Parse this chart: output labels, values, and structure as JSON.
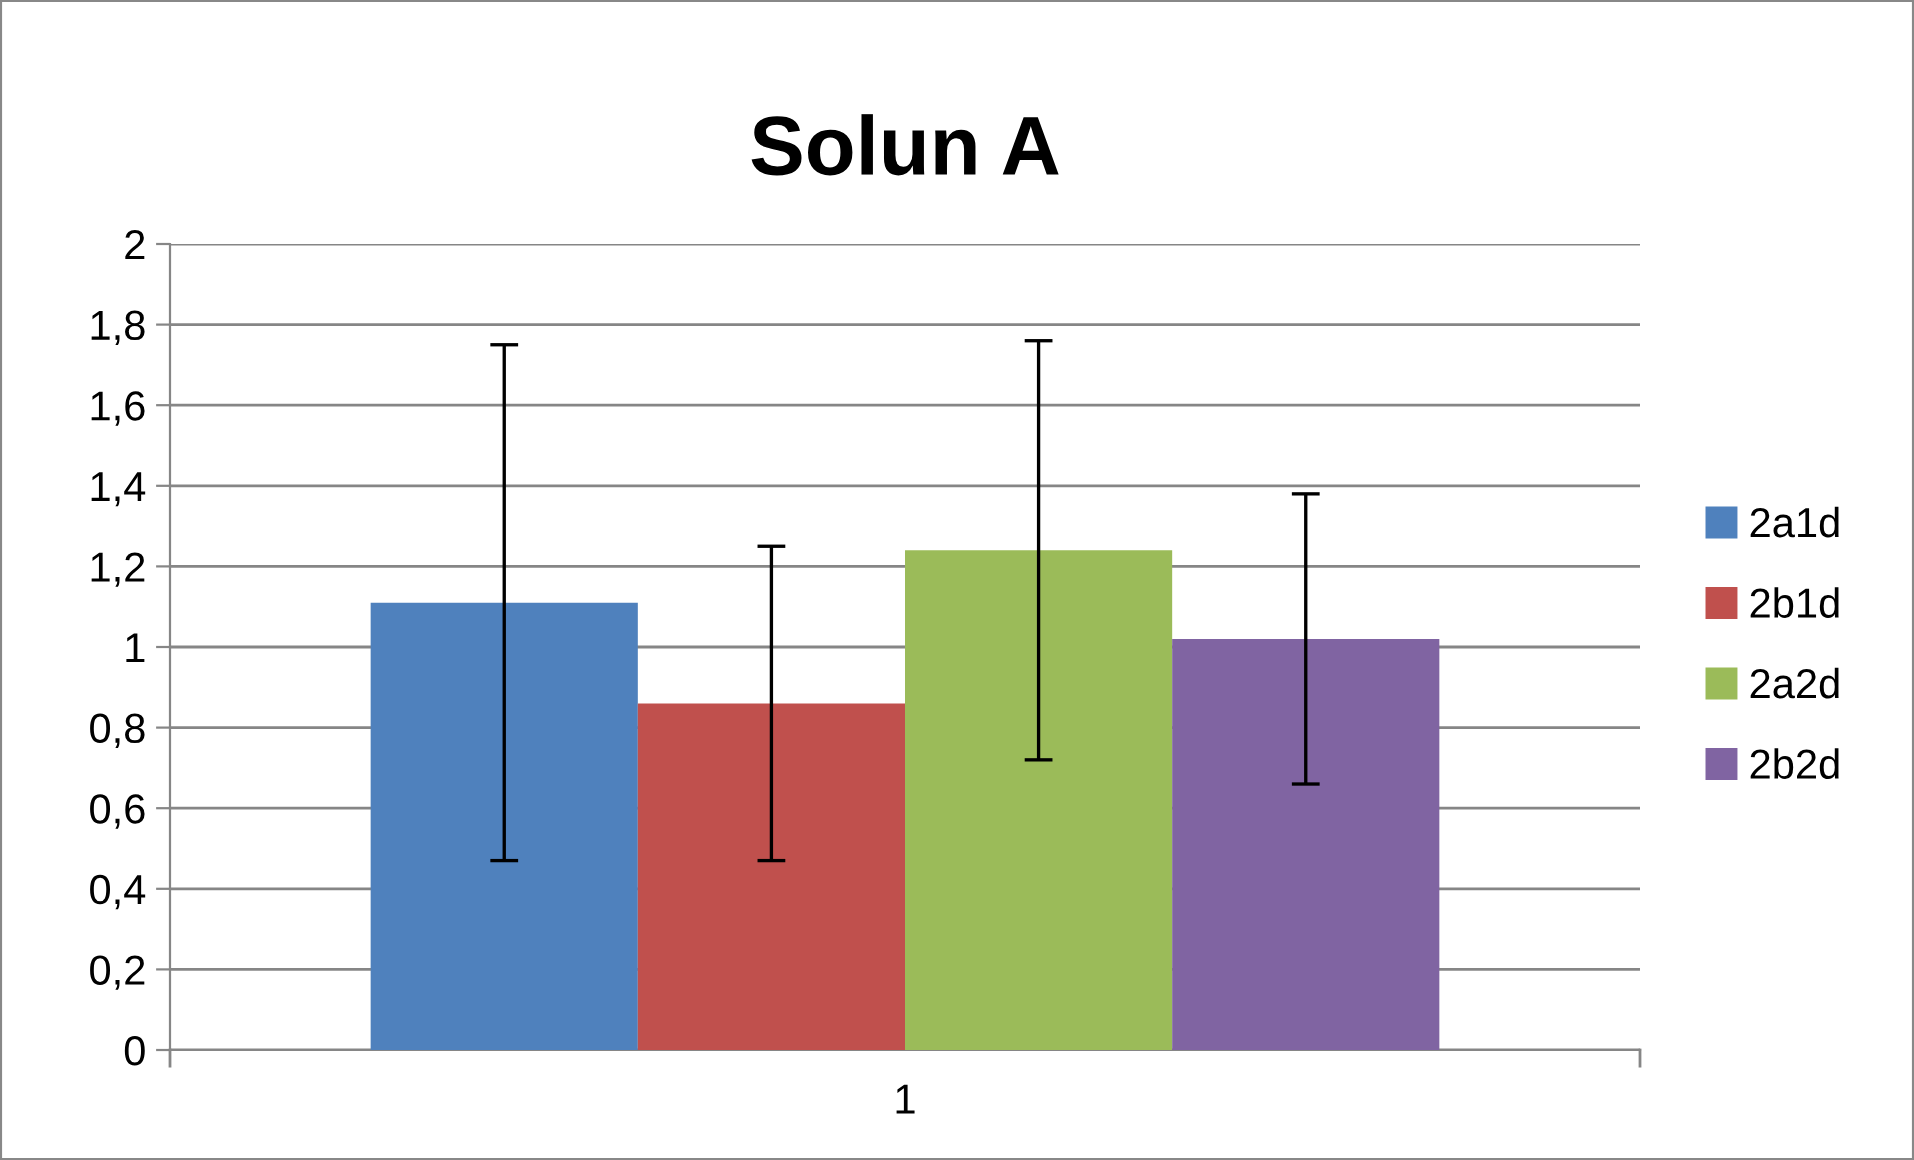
{
  "chart_data": {
    "type": "bar",
    "title": "Solun A",
    "categories": [
      "1"
    ],
    "series": [
      {
        "name": "2a1d",
        "color": "#4f81bd",
        "values": [
          1.11
        ],
        "errors": [
          0.64
        ]
      },
      {
        "name": "2b1d",
        "color": "#c0504d",
        "values": [
          0.86
        ],
        "errors": [
          0.39
        ]
      },
      {
        "name": "2a2d",
        "color": "#9bbb59",
        "values": [
          1.24
        ],
        "errors": [
          0.52
        ]
      },
      {
        "name": "2b2d",
        "color": "#8064a2",
        "values": [
          1.02
        ],
        "errors": [
          0.36
        ]
      }
    ],
    "ylim": [
      0,
      2
    ],
    "yticks": [
      0,
      {
        "value": 0.2,
        "label": "0,2"
      },
      {
        "value": 0.4,
        "label": "0,4"
      },
      {
        "value": 0.6,
        "label": "0,6"
      },
      {
        "value": 0.8,
        "label": "0,8"
      },
      1,
      {
        "value": 1.2,
        "label": "1,2"
      },
      {
        "value": 1.4,
        "label": "1,4"
      },
      {
        "value": 1.6,
        "label": "1,6"
      },
      {
        "value": 1.8,
        "label": "1,8"
      },
      2
    ],
    "grid": "y",
    "legend": "right"
  }
}
